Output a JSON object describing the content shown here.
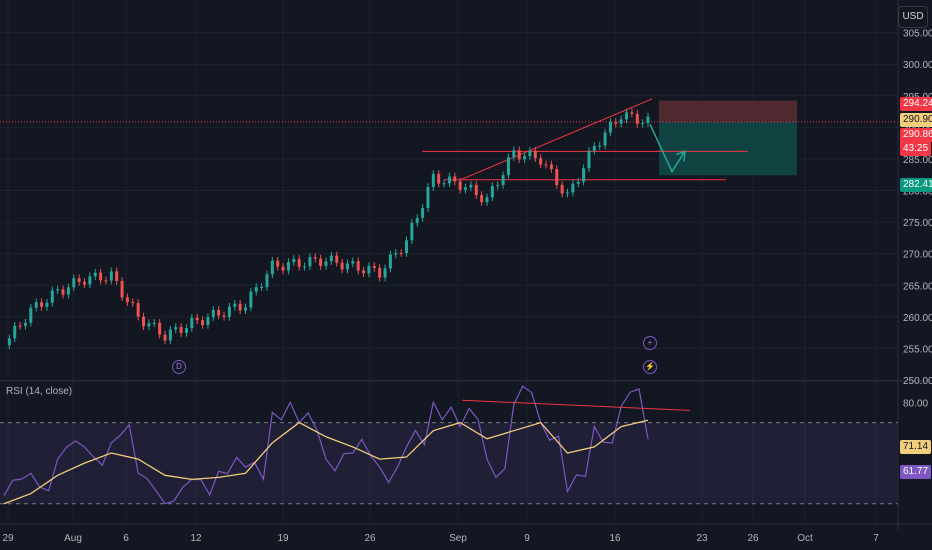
{
  "currency": "USD",
  "rsi_label": "RSI (14, close)",
  "x_ticks": [
    "29",
    "Aug",
    "6",
    "12",
    "19",
    "26",
    "Sep",
    "9",
    "16",
    "23",
    "26",
    "Oct",
    "7"
  ],
  "price_axis": [
    "305.00",
    "300.00",
    "295.00",
    "290.00",
    "285.00",
    "280.00",
    "275.00",
    "270.00",
    "265.00",
    "260.00",
    "255.00",
    "250.00"
  ],
  "rsi_axis": [
    "80.00"
  ],
  "price_tags": {
    "target": "294.24",
    "high": "290.90",
    "current_price": "290.86",
    "countdown": "43:25",
    "stop": "282.41"
  },
  "rsi_tags": {
    "sma": "71.14",
    "rsi": "61.77"
  },
  "event_markers": {
    "dividend": "D",
    "earnings": "+",
    "split": "⚡"
  },
  "colors": {
    "up": "#26a69a",
    "down": "#ef5350",
    "rsi": "#7e57c2",
    "rsi_ma": "#f2cd7b",
    "trend": "#f23645",
    "target": "#f23645",
    "stop": "#089981"
  },
  "chart_data": [
    {
      "type": "candlestick",
      "title": "",
      "x": [
        "Jul 26",
        "Jul 29",
        "Jul 31",
        "Aug 2",
        "Aug 5",
        "Aug 6",
        "Aug 8",
        "Aug 12",
        "Aug 14",
        "Aug 16",
        "Aug 19",
        "Aug 21",
        "Aug 23",
        "Aug 26",
        "Aug 28",
        "Aug 30",
        "Sep 2",
        "Sep 4",
        "Sep 6",
        "Sep 9",
        "Sep 11",
        "Sep 13",
        "Sep 16",
        "Sep 18",
        "Sep 19"
      ],
      "close": [
        255.5,
        261,
        264,
        266,
        266.5,
        260,
        257,
        259,
        260.5,
        262,
        268,
        268.5,
        269,
        268,
        267,
        272,
        282,
        281,
        278.5,
        286,
        285,
        279,
        287,
        292,
        290.86
      ],
      "ylim": [
        250,
        307
      ],
      "annotations": {
        "resistance": 286.2,
        "support": 281.7,
        "rising_trendline": [
          281.8,
          294.5
        ],
        "position": {
          "entry": 290.86,
          "target": 294.24,
          "stop": 282.41
        }
      }
    },
    {
      "type": "line",
      "title": "RSI (14, close)",
      "series": [
        {
          "values": [
            34,
            45,
            52,
            58,
            60,
            45,
            30,
            42,
            46,
            48,
            75,
            70,
            52,
            55,
            48,
            58,
            80,
            68,
            52,
            79,
            70,
            36,
            68,
            78,
            61.77
          ]
        },
        {
          "values": [
            30,
            35,
            44,
            50,
            55,
            52,
            44,
            42,
            43,
            45,
            60,
            70,
            63,
            58,
            52,
            53,
            66,
            70,
            62,
            66,
            70,
            55,
            58,
            68,
            71.14
          ]
        }
      ],
      "ylim": [
        20,
        90
      ],
      "annotations": {
        "upper_band": 70,
        "lower_band": 30,
        "divergence_line": [
          81,
          76
        ]
      }
    }
  ]
}
